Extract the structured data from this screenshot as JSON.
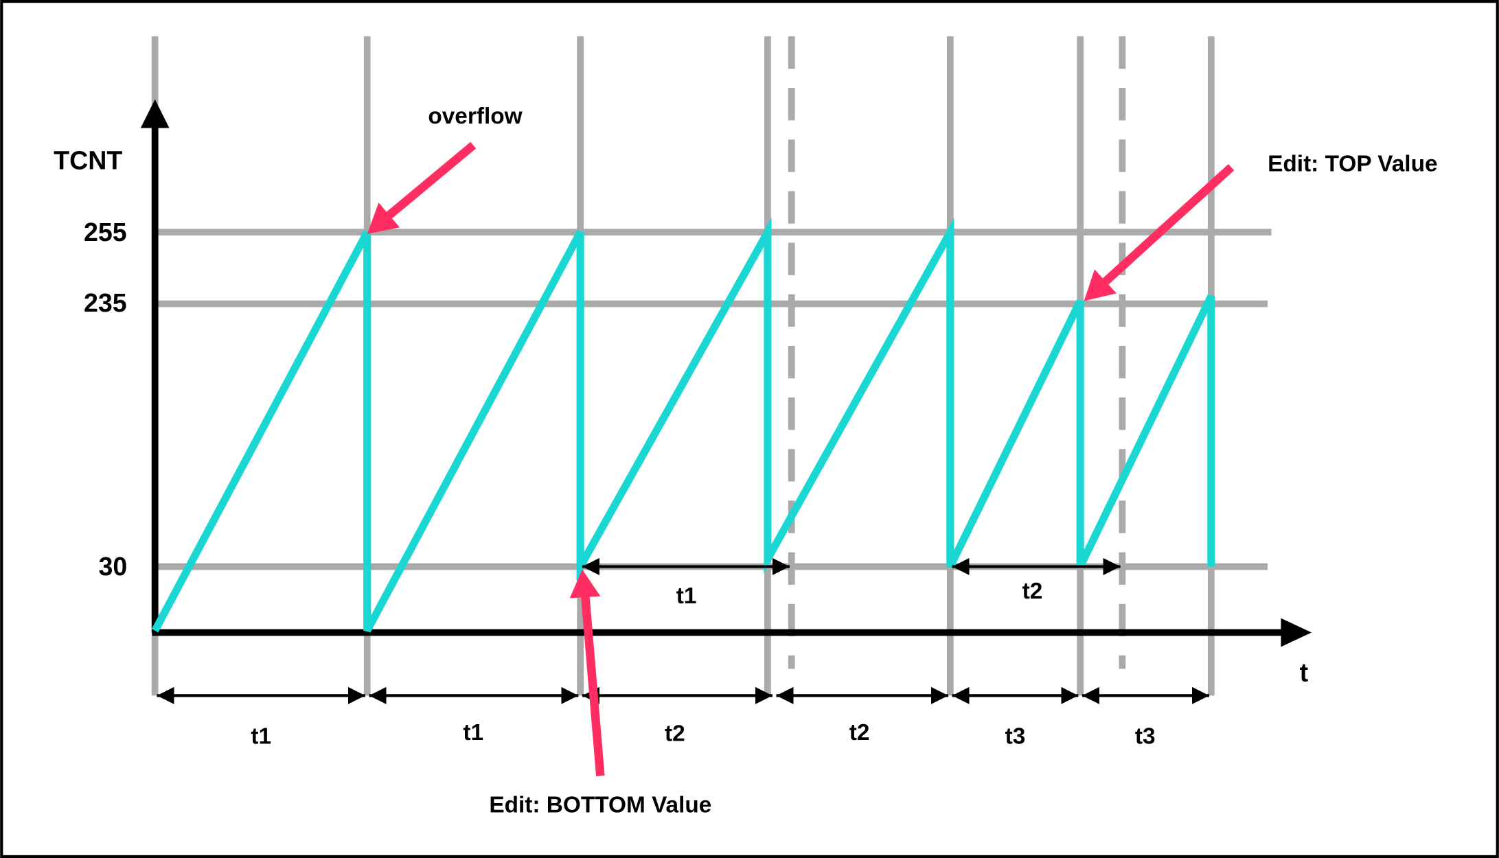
{
  "axes": {
    "y_label": "TCNT",
    "x_label": "t",
    "levels": [
      "255",
      "235",
      "30"
    ]
  },
  "intervals": [
    "t1",
    "t1",
    "t2",
    "t2",
    "t3",
    "t3"
  ],
  "inner_intervals": [
    "t1",
    "t2"
  ],
  "annotations": {
    "overflow": "overflow",
    "top": "Edit: TOP Value",
    "bottom": "Edit: BOTTOM Value"
  }
}
